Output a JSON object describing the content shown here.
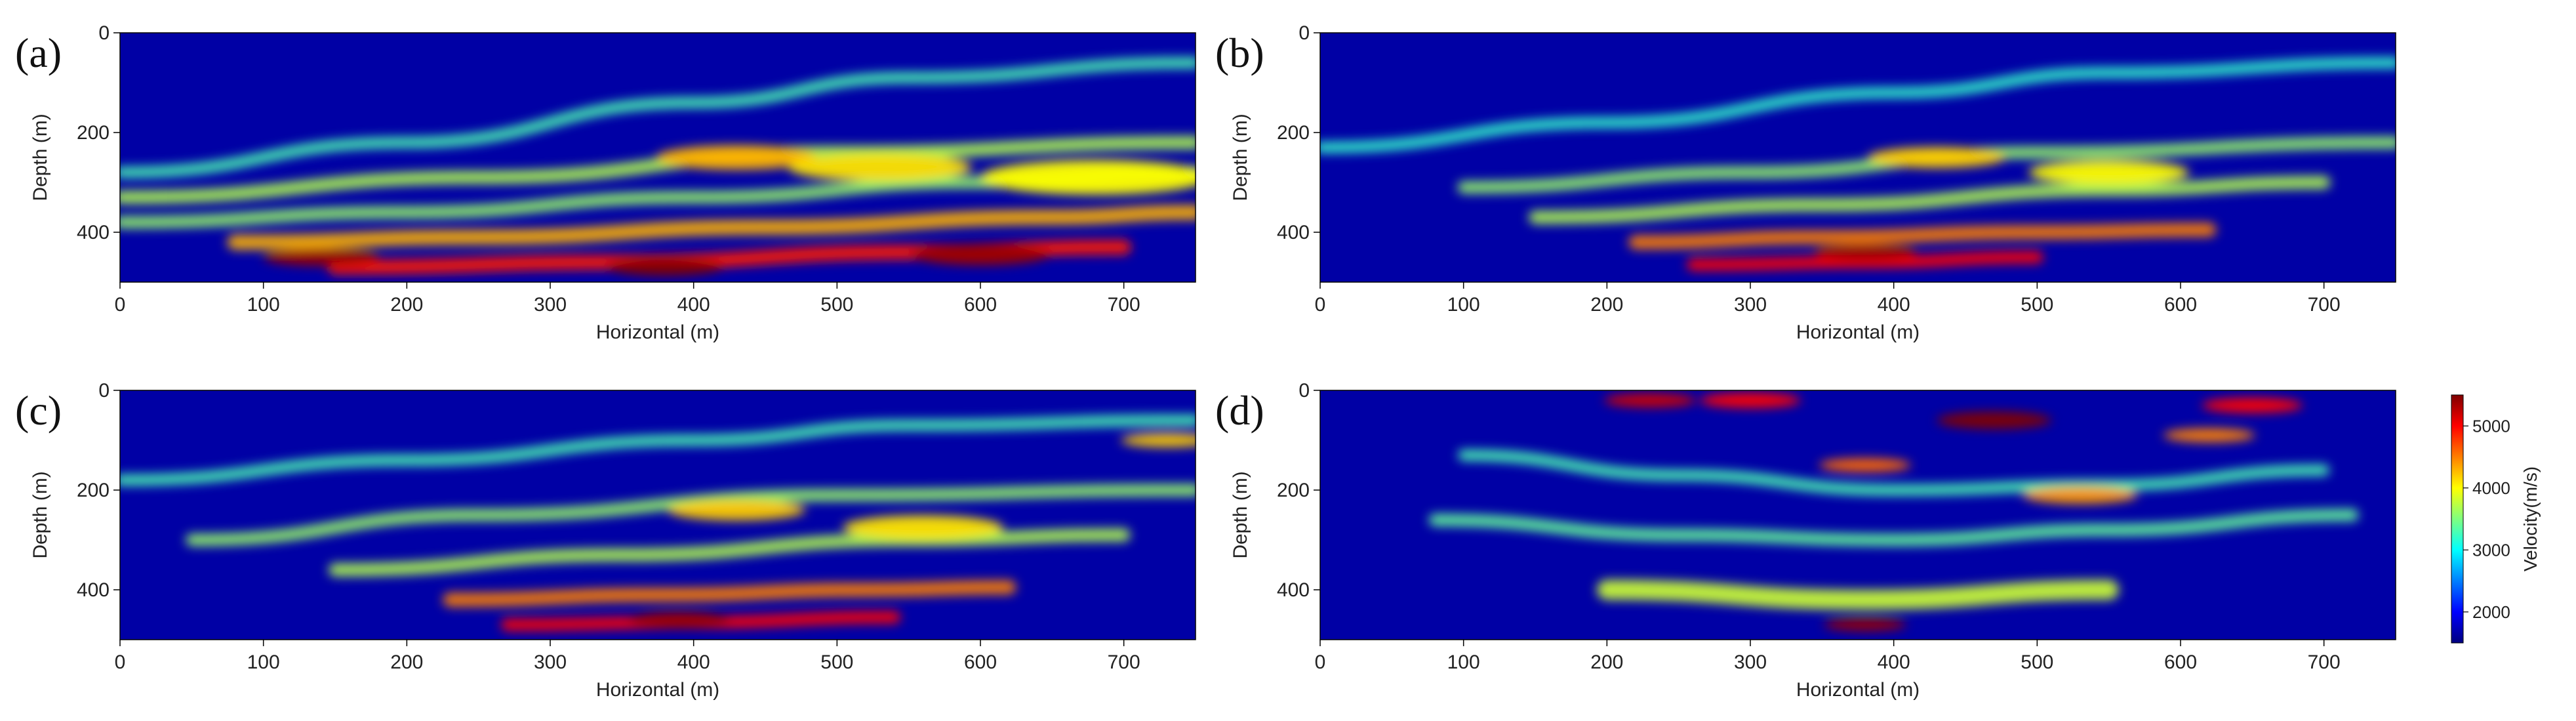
{
  "figure": {
    "background": "#ffffff",
    "colormap": "jet",
    "colormap_stops": [
      "#00007f",
      "#0000ff",
      "#007fff",
      "#00ffff",
      "#7fff7f",
      "#ffff00",
      "#ff7f00",
      "#ff0000",
      "#7f0000"
    ]
  },
  "chart_data": [
    {
      "type": "heatmap",
      "panel_label": "(a)",
      "xlabel": "Horizontal (m)",
      "ylabel": "Depth (m)",
      "xlim": [
        0,
        750
      ],
      "ylim": [
        500,
        0
      ],
      "xticks": [
        0,
        100,
        200,
        300,
        400,
        500,
        600,
        700
      ],
      "yticks": [
        0,
        200,
        400
      ],
      "value_range": [
        1500,
        5500
      ],
      "features": [
        {
          "kind": "layer",
          "x": [
            0,
            200,
            400,
            550,
            750
          ],
          "depth": [
            280,
            220,
            140,
            90,
            60
          ],
          "value": 3300,
          "thickness": 22
        },
        {
          "kind": "layer",
          "x": [
            0,
            250,
            500,
            750
          ],
          "depth": [
            330,
            290,
            240,
            220
          ],
          "value": 3700,
          "thickness": 26
        },
        {
          "kind": "layer",
          "x": [
            0,
            200,
            400,
            600,
            750
          ],
          "depth": [
            380,
            360,
            330,
            300,
            280
          ],
          "value": 3600,
          "thickness": 24
        },
        {
          "kind": "layer",
          "x": [
            80,
            250,
            450,
            650,
            750
          ],
          "depth": [
            420,
            410,
            390,
            370,
            360
          ],
          "value": 4300,
          "thickness": 30
        },
        {
          "kind": "layer",
          "x": [
            150,
            350,
            550,
            700
          ],
          "depth": [
            470,
            460,
            440,
            430
          ],
          "value": 4900,
          "thickness": 30
        },
        {
          "kind": "blob",
          "x": 430,
          "depth": 250,
          "value": 4300,
          "size": 35
        },
        {
          "kind": "blob",
          "x": 530,
          "depth": 270,
          "value": 4100,
          "size": 40
        },
        {
          "kind": "blob",
          "x": 680,
          "depth": 290,
          "value": 4000,
          "size": 50
        },
        {
          "kind": "blob",
          "x": 140,
          "depth": 450,
          "value": 5400,
          "size": 25
        },
        {
          "kind": "blob",
          "x": 380,
          "depth": 470,
          "value": 5500,
          "size": 25
        },
        {
          "kind": "blob",
          "x": 600,
          "depth": 445,
          "value": 5400,
          "size": 30
        }
      ]
    },
    {
      "type": "heatmap",
      "panel_label": "(b)",
      "xlabel": "Horizontal (m)",
      "ylabel": "Depth (m)",
      "xlim": [
        0,
        750
      ],
      "ylim": [
        500,
        0
      ],
      "xticks": [
        0,
        100,
        200,
        300,
        400,
        500,
        600,
        700
      ],
      "yticks": [
        0,
        200,
        400
      ],
      "value_range": [
        1500,
        5500
      ],
      "features": [
        {
          "kind": "layer",
          "x": [
            0,
            200,
            400,
            550,
            750
          ],
          "depth": [
            230,
            180,
            120,
            80,
            60
          ],
          "value": 3200,
          "thickness": 22
        },
        {
          "kind": "layer",
          "x": [
            100,
            300,
            500,
            750
          ],
          "depth": [
            310,
            280,
            240,
            220
          ],
          "value": 3600,
          "thickness": 24
        },
        {
          "kind": "layer",
          "x": [
            150,
            350,
            550,
            700
          ],
          "depth": [
            370,
            345,
            315,
            300
          ],
          "value": 3700,
          "thickness": 26
        },
        {
          "kind": "layer",
          "x": [
            220,
            350,
            500,
            620
          ],
          "depth": [
            420,
            410,
            400,
            395
          ],
          "value": 4500,
          "thickness": 28
        },
        {
          "kind": "layer",
          "x": [
            260,
            380,
            500
          ],
          "depth": [
            465,
            460,
            450
          ],
          "value": 5000,
          "thickness": 25
        },
        {
          "kind": "blob",
          "x": 430,
          "depth": 250,
          "value": 4200,
          "size": 30
        },
        {
          "kind": "blob",
          "x": 550,
          "depth": 280,
          "value": 4000,
          "size": 35
        },
        {
          "kind": "blob",
          "x": 380,
          "depth": 440,
          "value": 5400,
          "size": 22
        }
      ]
    },
    {
      "type": "heatmap",
      "panel_label": "(c)",
      "xlabel": "Horizontal (m)",
      "ylabel": "Depth (m)",
      "xlim": [
        0,
        750
      ],
      "ylim": [
        500,
        0
      ],
      "xticks": [
        0,
        100,
        200,
        300,
        400,
        500,
        600,
        700
      ],
      "yticks": [
        0,
        200,
        400
      ],
      "value_range": [
        1500,
        5500
      ],
      "features": [
        {
          "kind": "layer",
          "x": [
            0,
            200,
            400,
            550,
            750
          ],
          "depth": [
            180,
            140,
            100,
            70,
            60
          ],
          "value": 3300,
          "thickness": 22
        },
        {
          "kind": "layer",
          "x": [
            50,
            250,
            500,
            750
          ],
          "depth": [
            300,
            250,
            210,
            200
          ],
          "value": 3600,
          "thickness": 24
        },
        {
          "kind": "layer",
          "x": [
            150,
            350,
            550,
            700
          ],
          "depth": [
            360,
            330,
            300,
            290
          ],
          "value": 3700,
          "thickness": 26
        },
        {
          "kind": "layer",
          "x": [
            230,
            380,
            520,
            620
          ],
          "depth": [
            420,
            410,
            400,
            395
          ],
          "value": 4500,
          "thickness": 28
        },
        {
          "kind": "layer",
          "x": [
            270,
            400,
            540
          ],
          "depth": [
            470,
            465,
            455
          ],
          "value": 5000,
          "thickness": 25
        },
        {
          "kind": "blob",
          "x": 430,
          "depth": 240,
          "value": 4200,
          "size": 30
        },
        {
          "kind": "blob",
          "x": 560,
          "depth": 275,
          "value": 4100,
          "size": 35
        },
        {
          "kind": "blob",
          "x": 730,
          "depth": 100,
          "value": 4200,
          "size": 20
        },
        {
          "kind": "blob",
          "x": 390,
          "depth": 460,
          "value": 5400,
          "size": 22
        }
      ]
    },
    {
      "type": "heatmap",
      "panel_label": "(d)",
      "xlabel": "Horizontal (m)",
      "ylabel": "Depth (m)",
      "xlim": [
        0,
        750
      ],
      "ylim": [
        500,
        0
      ],
      "xticks": [
        0,
        100,
        200,
        300,
        400,
        500,
        600,
        700
      ],
      "yticks": [
        0,
        200,
        400
      ],
      "value_range": [
        1500,
        5500
      ],
      "features": [
        {
          "kind": "layer",
          "x": [
            100,
            250,
            400,
            550,
            700
          ],
          "depth": [
            130,
            170,
            200,
            190,
            160
          ],
          "value": 3300,
          "thickness": 22
        },
        {
          "kind": "layer",
          "x": [
            80,
            250,
            400,
            550,
            720
          ],
          "depth": [
            260,
            290,
            300,
            280,
            250
          ],
          "value": 3400,
          "thickness": 24
        },
        {
          "kind": "layer",
          "x": [
            200,
            380,
            550
          ],
          "depth": [
            400,
            420,
            400
          ],
          "value": 3800,
          "thickness": 40
        },
        {
          "kind": "blob",
          "x": 230,
          "depth": 20,
          "value": 5200,
          "size": 20
        },
        {
          "kind": "blob",
          "x": 300,
          "depth": 20,
          "value": 5000,
          "size": 22
        },
        {
          "kind": "blob",
          "x": 470,
          "depth": 60,
          "value": 5500,
          "size": 25
        },
        {
          "kind": "blob",
          "x": 650,
          "depth": 30,
          "value": 5000,
          "size": 22
        },
        {
          "kind": "blob",
          "x": 620,
          "depth": 90,
          "value": 4500,
          "size": 20
        },
        {
          "kind": "blob",
          "x": 380,
          "depth": 150,
          "value": 4600,
          "size": 20
        },
        {
          "kind": "blob",
          "x": 530,
          "depth": 210,
          "value": 4400,
          "size": 25
        },
        {
          "kind": "blob",
          "x": 380,
          "depth": 470,
          "value": 5400,
          "size": 18
        }
      ]
    }
  ],
  "colorbar": {
    "label": "Velocity(m/s)",
    "range": [
      1500,
      5500
    ],
    "ticks": [
      2000,
      3000,
      4000,
      5000
    ]
  }
}
